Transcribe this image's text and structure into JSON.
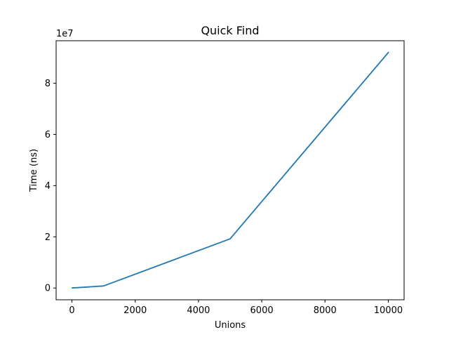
{
  "chart_data": {
    "type": "line",
    "title": "Quick Find",
    "xlabel": "Unions",
    "ylabel": "Time (ns)",
    "y_offset_label": "1e7",
    "xlim": [
      -500,
      10500
    ],
    "ylim": [
      -4600000,
      96600000
    ],
    "x_ticks": [
      0,
      2000,
      4000,
      6000,
      8000,
      10000
    ],
    "x_tick_labels": [
      "0",
      "2000",
      "4000",
      "6000",
      "8000",
      "10000"
    ],
    "y_ticks": [
      0,
      20000000,
      40000000,
      60000000,
      80000000
    ],
    "y_tick_labels": [
      "0",
      "2",
      "4",
      "6",
      "8"
    ],
    "grid": false,
    "series": [
      {
        "name": "Quick Find",
        "color": "#1f77b4",
        "x": [
          10,
          1000,
          5000,
          10000
        ],
        "y": [
          0,
          800000,
          19200000,
          92000000
        ]
      }
    ]
  }
}
